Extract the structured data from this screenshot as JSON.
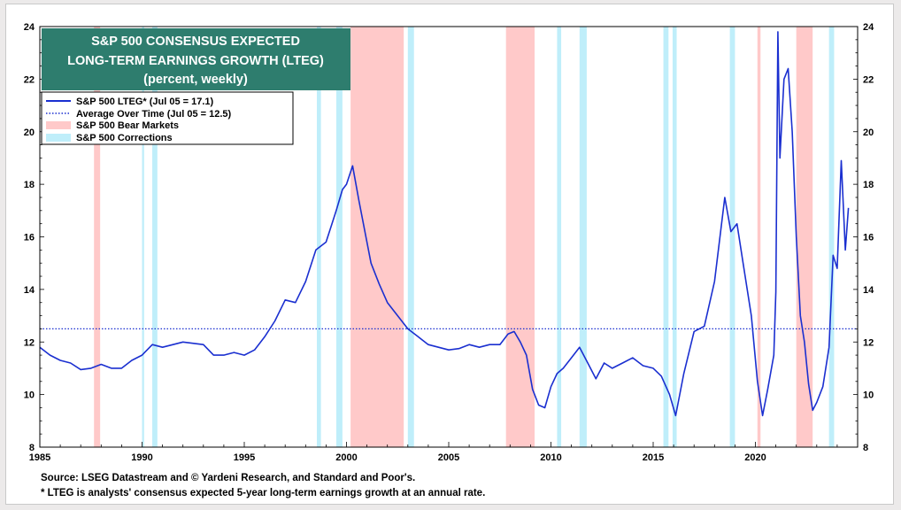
{
  "chart_data": {
    "type": "line",
    "title": "S&P 500 CONSENSUS EXPECTED",
    "title_line2": "LONG-TERM EARNINGS GROWTH (LTEG)",
    "subtitle": "(percent, weekly)",
    "xlim": [
      1985,
      2025
    ],
    "ylim": [
      8,
      24
    ],
    "x_ticks": [
      "1985",
      "1990",
      "1995",
      "2000",
      "2005",
      "2010",
      "2015",
      "2020"
    ],
    "y_ticks_left": [
      "8",
      "10",
      "12",
      "14",
      "16",
      "18",
      "20",
      "22",
      "24"
    ],
    "y_ticks_right": [
      "8",
      "10",
      "12",
      "14",
      "16",
      "18",
      "20",
      "22",
      "24"
    ],
    "legend": {
      "placement": "top-left",
      "entries": [
        {
          "label": "S&P 500 LTEG* (Jul 05 = 17.1)",
          "style": "solid-line",
          "color": "#1a2fd0"
        },
        {
          "label": "Average Over Time (Jul 05 = 12.5)",
          "style": "dotted-line",
          "color": "#1a2fd0"
        },
        {
          "label": "S&P 500 Bear Markets",
          "style": "swatch",
          "color": "#ffc9c9"
        },
        {
          "label": "S&P 500 Corrections",
          "style": "swatch",
          "color": "#bfeefa"
        }
      ]
    },
    "average": 12.5,
    "bear_markets": [
      [
        1987.65,
        1987.95
      ],
      [
        2000.2,
        2002.8
      ],
      [
        2007.8,
        2009.2
      ],
      [
        2020.1,
        2020.25
      ],
      [
        2022.0,
        2022.8
      ]
    ],
    "corrections": [
      [
        1990.0,
        1990.1
      ],
      [
        1990.5,
        1990.75
      ],
      [
        1998.55,
        1998.75
      ],
      [
        1999.5,
        1999.8
      ],
      [
        2003.0,
        2003.3
      ],
      [
        2010.3,
        2010.5
      ],
      [
        2011.4,
        2011.75
      ],
      [
        2015.5,
        2015.75
      ],
      [
        2015.95,
        2016.15
      ],
      [
        2018.75,
        2019.0
      ],
      [
        2023.6,
        2023.85
      ]
    ],
    "series": [
      {
        "name": "S&P 500 LTEG*",
        "color": "#1a2fd0",
        "x": [
          1985.0,
          1985.5,
          1986.0,
          1986.5,
          1987.0,
          1987.5,
          1988.0,
          1988.5,
          1989.0,
          1989.5,
          1990.0,
          1990.5,
          1991.0,
          1992.0,
          1993.0,
          1993.5,
          1994.0,
          1994.5,
          1995.0,
          1995.5,
          1996.0,
          1996.5,
          1997.0,
          1997.5,
          1998.0,
          1998.5,
          1999.0,
          1999.5,
          1999.8,
          2000.0,
          2000.3,
          2000.6,
          2000.9,
          2001.2,
          2001.6,
          2002.0,
          2002.5,
          2003.0,
          2003.5,
          2004.0,
          2004.5,
          2005.0,
          2005.5,
          2006.0,
          2006.5,
          2007.0,
          2007.5,
          2007.9,
          2008.2,
          2008.5,
          2008.8,
          2009.1,
          2009.4,
          2009.7,
          2010.0,
          2010.3,
          2010.6,
          2011.0,
          2011.4,
          2011.8,
          2012.2,
          2012.6,
          2013.0,
          2013.5,
          2014.0,
          2014.5,
          2015.0,
          2015.4,
          2015.8,
          2016.1,
          2016.5,
          2017.0,
          2017.5,
          2018.0,
          2018.5,
          2018.8,
          2019.1,
          2019.4,
          2019.8,
          2020.1,
          2020.35,
          2020.6,
          2020.9,
          2021.0,
          2021.1,
          2021.2,
          2021.4,
          2021.6,
          2021.8,
          2022.0,
          2022.2,
          2022.4,
          2022.6,
          2022.8,
          2023.0,
          2023.3,
          2023.6,
          2023.8,
          2024.0,
          2024.2,
          2024.4,
          2024.55
        ],
        "values": [
          11.8,
          11.5,
          11.3,
          11.2,
          10.95,
          11.0,
          11.15,
          11.0,
          11.0,
          11.3,
          11.5,
          11.9,
          11.8,
          12.0,
          11.9,
          11.5,
          11.5,
          11.6,
          11.5,
          11.7,
          12.2,
          12.8,
          13.6,
          13.5,
          14.3,
          15.5,
          15.8,
          17.0,
          17.8,
          18.0,
          18.7,
          17.4,
          16.2,
          15.0,
          14.2,
          13.5,
          13.0,
          12.5,
          12.2,
          11.9,
          11.8,
          11.7,
          11.75,
          11.9,
          11.8,
          11.9,
          11.9,
          12.3,
          12.4,
          12.0,
          11.5,
          10.2,
          9.6,
          9.5,
          10.3,
          10.8,
          11.0,
          11.4,
          11.8,
          11.2,
          10.6,
          11.2,
          11.0,
          11.2,
          11.4,
          11.1,
          11.0,
          10.7,
          10.0,
          9.2,
          10.8,
          12.4,
          12.6,
          14.3,
          17.5,
          16.2,
          16.5,
          15.0,
          13.0,
          10.5,
          9.2,
          10.2,
          11.5,
          13.9,
          23.8,
          19.0,
          22.0,
          22.4,
          20.0,
          16.0,
          13.0,
          12.0,
          10.4,
          9.4,
          9.7,
          10.3,
          11.8,
          15.3,
          14.8,
          18.9,
          15.5,
          17.1
        ]
      }
    ]
  },
  "footer": {
    "source": "Source: LSEG Datastream and © Yardeni Research, and Standard and Poor's.",
    "note": "* LTEG is analysts' consensus expected 5-year long-term earnings growth at an annual rate."
  },
  "colors": {
    "title_box": "#2e7d6e",
    "line": "#1a2fd0",
    "bear": "#ffc9c9",
    "correction": "#bfeefa"
  }
}
